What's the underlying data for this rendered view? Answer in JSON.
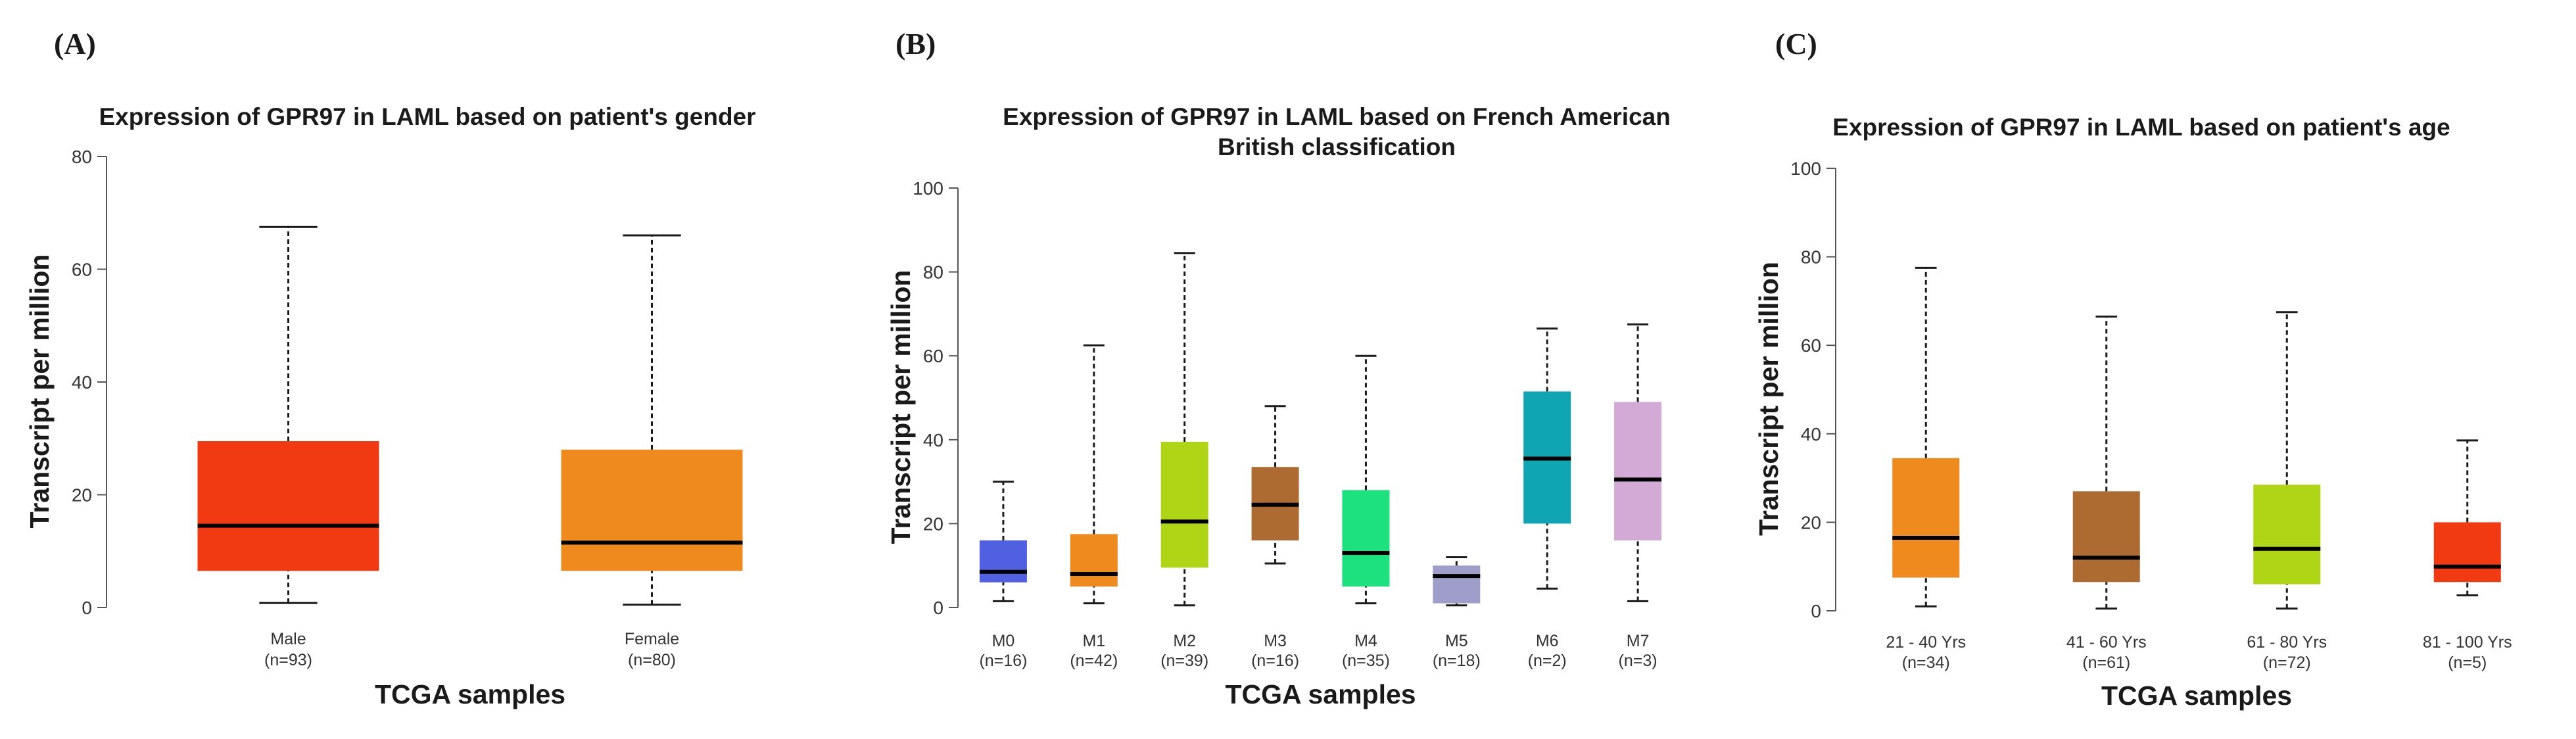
{
  "colors": {
    "axis": "#555555",
    "whisker": "#1a1a1a",
    "median": "#000000"
  },
  "chart_data": [
    {
      "panel_label": "(A)",
      "type": "boxplot",
      "title": "Expression of GPR97 in LAML based on patient's gender",
      "title_lines": [
        "Expression of GPR97 in LAML based on patient's gender"
      ],
      "xlabel": "TCGA samples",
      "ylabel": "Transcript per million",
      "ylim": [
        0,
        80
      ],
      "yticks": [
        "0",
        "20",
        "40",
        "60",
        "80"
      ],
      "categories": [
        {
          "name": "Male",
          "n": "(n=93)",
          "min": 0.8,
          "q1": 6.5,
          "median": 14.5,
          "q3": 29.5,
          "max": 67.5,
          "color": "#F23A12"
        },
        {
          "name": "Female",
          "n": "(n=80)",
          "min": 0.5,
          "q1": 6.5,
          "median": 11.5,
          "q3": 28.0,
          "max": 66.0,
          "color": "#EE8A1E"
        }
      ]
    },
    {
      "panel_label": "(B)",
      "type": "boxplot",
      "title": "Expression of GPR97 in LAML based on French American British classification",
      "title_lines": [
        "Expression of GPR97 in LAML based on French American",
        "British classification"
      ],
      "xlabel": "TCGA samples",
      "ylabel": "Transcript per million",
      "ylim": [
        0,
        100
      ],
      "yticks": [
        "0",
        "20",
        "40",
        "60",
        "80",
        "100"
      ],
      "categories": [
        {
          "name": "M0",
          "n": "(n=16)",
          "min": 1.5,
          "q1": 6.0,
          "median": 8.5,
          "q3": 16.0,
          "max": 30.0,
          "color": "#5160E0"
        },
        {
          "name": "M1",
          "n": "(n=42)",
          "min": 1.0,
          "q1": 5.0,
          "median": 8.0,
          "q3": 17.5,
          "max": 62.5,
          "color": "#EE8A1E"
        },
        {
          "name": "M2",
          "n": "(n=39)",
          "min": 0.5,
          "q1": 9.5,
          "median": 20.5,
          "q3": 39.5,
          "max": 84.5,
          "color": "#AFD516"
        },
        {
          "name": "M3",
          "n": "(n=16)",
          "min": 10.5,
          "q1": 16.0,
          "median": 24.5,
          "q3": 33.5,
          "max": 48.0,
          "color": "#AD6B32"
        },
        {
          "name": "M4",
          "n": "(n=35)",
          "min": 1.0,
          "q1": 5.0,
          "median": 13.0,
          "q3": 28.0,
          "max": 60.0,
          "color": "#1DE07F"
        },
        {
          "name": "M5",
          "n": "(n=18)",
          "min": 0.5,
          "q1": 1.0,
          "median": 7.5,
          "q3": 10.0,
          "max": 12.0,
          "color": "#9F9ECB"
        },
        {
          "name": "M6",
          "n": "(n=2)",
          "min": 4.5,
          "q1": 20.0,
          "median": 35.5,
          "q3": 51.5,
          "max": 66.5,
          "color": "#0FA5B2"
        },
        {
          "name": "M7",
          "n": "(n=3)",
          "min": 1.5,
          "q1": 16.0,
          "median": 30.5,
          "q3": 49.0,
          "max": 67.5,
          "color": "#D3A9D5"
        }
      ]
    },
    {
      "panel_label": "(C)",
      "type": "boxplot",
      "title": "Expression of GPR97 in LAML based on patient's age",
      "title_lines": [
        "Expression of GPR97 in LAML based on patient's age"
      ],
      "xlabel": "TCGA samples",
      "ylabel": "Transcript per million",
      "ylim": [
        0,
        100
      ],
      "yticks": [
        "0",
        "20",
        "40",
        "60",
        "80",
        "100"
      ],
      "categories": [
        {
          "name": "21 - 40 Yrs",
          "n": "(n=34)",
          "min": 1.0,
          "q1": 7.5,
          "median": 16.5,
          "q3": 34.5,
          "max": 77.5,
          "color": "#EE8A1E"
        },
        {
          "name": "41 - 60 Yrs",
          "n": "(n=61)",
          "min": 0.5,
          "q1": 6.5,
          "median": 12.0,
          "q3": 27.0,
          "max": 66.5,
          "color": "#AD6B32"
        },
        {
          "name": "61 - 80 Yrs",
          "n": "(n=72)",
          "min": 0.5,
          "q1": 6.0,
          "median": 14.0,
          "q3": 28.5,
          "max": 67.5,
          "color": "#AFD516"
        },
        {
          "name": "81 - 100 Yrs",
          "n": "(n=5)",
          "min": 3.5,
          "q1": 6.5,
          "median": 10.0,
          "q3": 20.0,
          "max": 38.5,
          "color": "#F23A12"
        }
      ]
    }
  ]
}
